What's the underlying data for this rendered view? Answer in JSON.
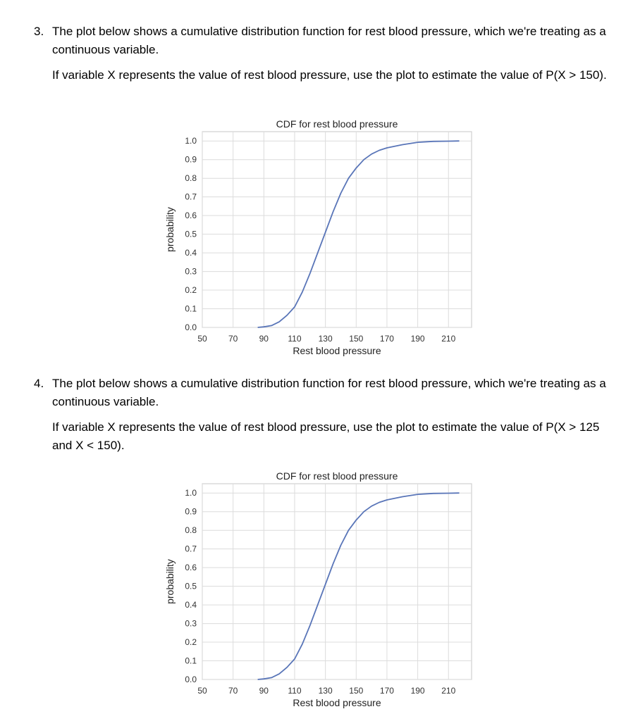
{
  "questions": [
    {
      "number": "3.",
      "intro": "The plot below shows a cumulative distribution function for rest blood pressure, which we're treating as a continuous variable.",
      "prompt": "If variable X represents the value of rest blood pressure, use the plot to estimate the value of P(X > 150)."
    },
    {
      "number": "4.",
      "intro": "The plot below shows a cumulative distribution function for rest blood pressure, which we're treating as a continuous variable.",
      "prompt": "If variable X represents the value of rest blood pressure, use the plot to estimate the value of P(X > 125 and X < 150)."
    }
  ],
  "chart_data": [
    {
      "type": "line",
      "title": "CDF for rest blood pressure",
      "xlabel": "Rest blood pressure",
      "ylabel": "probability",
      "xlim": [
        50,
        225
      ],
      "ylim": [
        0,
        1.05
      ],
      "xticks": [
        50,
        70,
        90,
        110,
        130,
        150,
        170,
        190,
        210
      ],
      "yticks": [
        "0.0",
        "0.1",
        "0.2",
        "0.3",
        "0.4",
        "0.5",
        "0.6",
        "0.7",
        "0.8",
        "0.9",
        "1.0"
      ],
      "grid": true,
      "color": "#5975b8",
      "x": [
        86,
        90,
        95,
        100,
        105,
        110,
        115,
        120,
        125,
        130,
        135,
        140,
        145,
        150,
        155,
        160,
        165,
        170,
        180,
        190,
        200,
        210,
        217
      ],
      "y": [
        0,
        0.003,
        0.01,
        0.03,
        0.065,
        0.11,
        0.19,
        0.29,
        0.4,
        0.51,
        0.62,
        0.72,
        0.8,
        0.855,
        0.9,
        0.93,
        0.95,
        0.963,
        0.98,
        0.993,
        0.998,
        0.999,
        1.0
      ]
    },
    {
      "type": "line",
      "title": "CDF for rest blood pressure",
      "xlabel": "Rest blood pressure",
      "ylabel": "probability",
      "xlim": [
        50,
        225
      ],
      "ylim": [
        0,
        1.05
      ],
      "xticks": [
        50,
        70,
        90,
        110,
        130,
        150,
        170,
        190,
        210
      ],
      "yticks": [
        "0.0",
        "0.1",
        "0.2",
        "0.3",
        "0.4",
        "0.5",
        "0.6",
        "0.7",
        "0.8",
        "0.9",
        "1.0"
      ],
      "grid": true,
      "color": "#5975b8",
      "x": [
        86,
        90,
        95,
        100,
        105,
        110,
        115,
        120,
        125,
        130,
        135,
        140,
        145,
        150,
        155,
        160,
        165,
        170,
        180,
        190,
        200,
        210,
        217
      ],
      "y": [
        0,
        0.003,
        0.01,
        0.03,
        0.065,
        0.11,
        0.19,
        0.29,
        0.4,
        0.51,
        0.62,
        0.72,
        0.8,
        0.855,
        0.9,
        0.93,
        0.95,
        0.963,
        0.98,
        0.993,
        0.998,
        0.999,
        1.0
      ]
    }
  ]
}
